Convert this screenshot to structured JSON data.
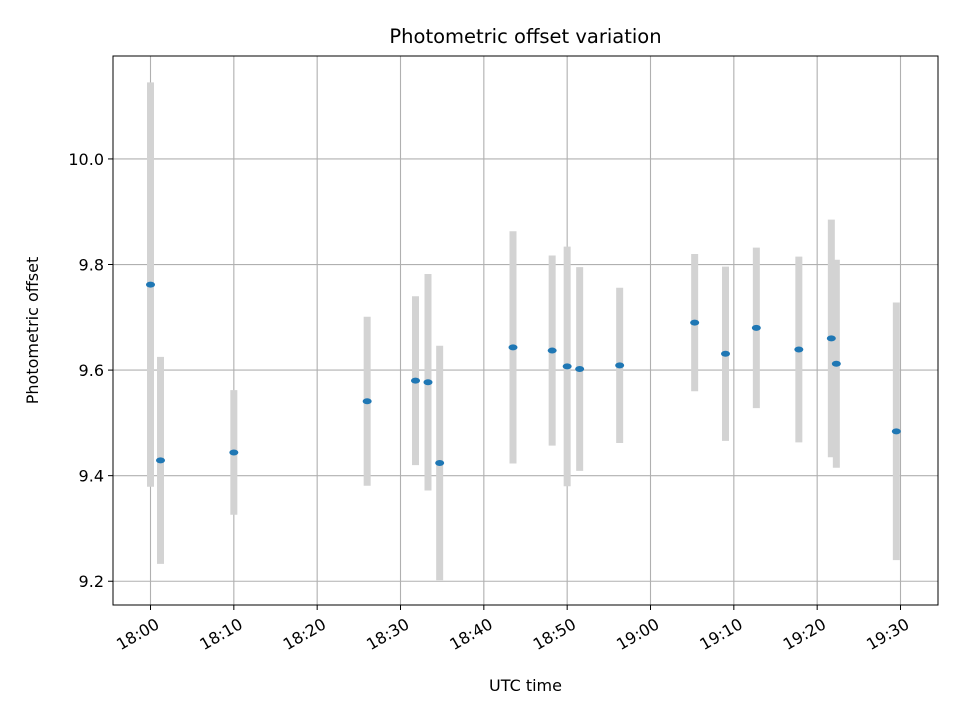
{
  "chart_data": {
    "type": "scatter",
    "title": "Photometric offset variation",
    "xlabel": "UTC time",
    "ylabel": "Photometric offset",
    "x_tick_labels": [
      "18:00",
      "18:10",
      "18:20",
      "18:30",
      "18:40",
      "18:50",
      "19:00",
      "19:10",
      "19:20",
      "19:30"
    ],
    "y_tick_labels": [
      "9.2",
      "9.4",
      "9.6",
      "9.8",
      "10.0"
    ],
    "x_ticks_minutes": [
      0,
      10,
      20,
      30,
      40,
      50,
      60,
      70,
      80,
      90
    ],
    "y_ticks": [
      9.2,
      9.4,
      9.6,
      9.8,
      10.0
    ],
    "xlim_minutes": [
      -4.5,
      94.5
    ],
    "ylim": [
      9.155,
      10.195
    ],
    "grid": true,
    "point_color": "#1f77b4",
    "errorbar_color": "#d3d3d3",
    "series": [
      {
        "x_minutes": [
          0.0,
          1.2,
          10.0,
          26.0,
          31.8,
          33.3,
          34.7,
          43.5,
          48.2,
          50.0,
          51.5,
          56.3,
          65.3,
          69.0,
          72.7,
          77.8,
          81.7,
          82.3,
          89.5
        ],
        "x": [
          "18:00:00",
          "18:01:12",
          "18:10:00",
          "18:26:00",
          "18:31:48",
          "18:33:18",
          "18:34:42",
          "18:43:30",
          "18:48:12",
          "18:50:00",
          "18:51:30",
          "18:56:18",
          "19:05:18",
          "19:09:00",
          "19:12:42",
          "19:17:48",
          "19:21:42",
          "19:22:18",
          "19:29:30"
        ],
        "y": [
          9.762,
          9.429,
          9.444,
          9.541,
          9.58,
          9.577,
          9.424,
          9.643,
          9.637,
          9.607,
          9.602,
          9.609,
          9.69,
          9.631,
          9.68,
          9.639,
          9.66,
          9.612,
          9.484
        ],
        "yerr": [
          0.383,
          0.196,
          0.118,
          0.16,
          0.16,
          0.205,
          0.222,
          0.22,
          0.18,
          0.227,
          0.193,
          0.147,
          0.13,
          0.165,
          0.152,
          0.176,
          0.225,
          0.197,
          0.244
        ]
      }
    ]
  }
}
